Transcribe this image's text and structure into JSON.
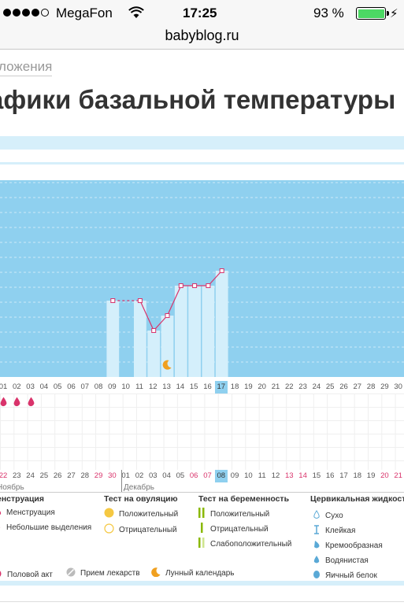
{
  "status_bar": {
    "carrier": "MegaFon",
    "time": "17:25",
    "battery": "93 %"
  },
  "url": "babyblog.ru",
  "breadcrumb": "ложения",
  "title": "афики базальной температуры",
  "chart_data": {
    "type": "bar",
    "x_top": [
      "01",
      "02",
      "03",
      "04",
      "05",
      "06",
      "07",
      "08",
      "09",
      "10",
      "11",
      "12",
      "13",
      "14",
      "15",
      "16",
      "17",
      "18",
      "19",
      "20",
      "21",
      "22",
      "23",
      "24",
      "25",
      "26",
      "27",
      "28",
      "29",
      "30"
    ],
    "highlight": "17",
    "bars": [
      {
        "day": "09",
        "level": 4
      },
      {
        "day": "11",
        "level": 4
      },
      {
        "day": "12",
        "level": 2
      },
      {
        "day": "13",
        "level": 3
      },
      {
        "day": "14",
        "level": 5
      },
      {
        "day": "15",
        "level": 5
      },
      {
        "day": "16",
        "level": 5
      },
      {
        "day": "17",
        "level": 6
      }
    ],
    "line_dashed_segment": [
      "09",
      "11"
    ],
    "moon_day": "13",
    "menstruation_days": [
      "01",
      "02",
      "03"
    ],
    "x_bottom": [
      {
        "label": "22",
        "red": true
      },
      {
        "label": "23",
        "red": false
      },
      {
        "label": "24",
        "red": false
      },
      {
        "label": "25",
        "red": false
      },
      {
        "label": "26",
        "red": false
      },
      {
        "label": "27",
        "red": false
      },
      {
        "label": "28",
        "red": false
      },
      {
        "label": "29",
        "red": true
      },
      {
        "label": "30",
        "red": true
      },
      {
        "label": "01",
        "red": false
      },
      {
        "label": "02",
        "red": false
      },
      {
        "label": "03",
        "red": false
      },
      {
        "label": "04",
        "red": false
      },
      {
        "label": "05",
        "red": false
      },
      {
        "label": "06",
        "red": true
      },
      {
        "label": "07",
        "red": true
      },
      {
        "label": "08",
        "red": false,
        "hl": true
      },
      {
        "label": "09",
        "red": false
      },
      {
        "label": "10",
        "red": false
      },
      {
        "label": "11",
        "red": false
      },
      {
        "label": "12",
        "red": false
      },
      {
        "label": "13",
        "red": true
      },
      {
        "label": "14",
        "red": true
      },
      {
        "label": "15",
        "red": false
      },
      {
        "label": "16",
        "red": false
      },
      {
        "label": "17",
        "red": false
      },
      {
        "label": "18",
        "red": false
      },
      {
        "label": "19",
        "red": false
      },
      {
        "label": "20",
        "red": true
      },
      {
        "label": "21",
        "red": true
      }
    ],
    "months": [
      "Ноябрь",
      "Декабрь"
    ]
  },
  "legend": {
    "menstruation": {
      "title": "енструация",
      "items": [
        "Менструация",
        "Небольшие выделения"
      ]
    },
    "ovulation_test": {
      "title": "Тест на овуляцию",
      "items": [
        "Положительный",
        "Отрицательный"
      ]
    },
    "pregnancy_test": {
      "title": "Тест на беременность",
      "items": [
        "Положительный",
        "Отрицательный",
        "Слабоположительный"
      ]
    },
    "cervical_fluid": {
      "title": "Цервикальная жидкость",
      "items": [
        "Сухо",
        "Клейкая",
        "Кремообразная",
        "Водянистая",
        "Яичный белок"
      ]
    },
    "other": [
      "Половой акт",
      "Прием лекарств",
      "Лунный календарь"
    ]
  },
  "colors": {
    "chart_bg": "#8fd0ef",
    "bar": "#d4effb",
    "line": "#d9336b",
    "accent_red": "#d9336b"
  }
}
